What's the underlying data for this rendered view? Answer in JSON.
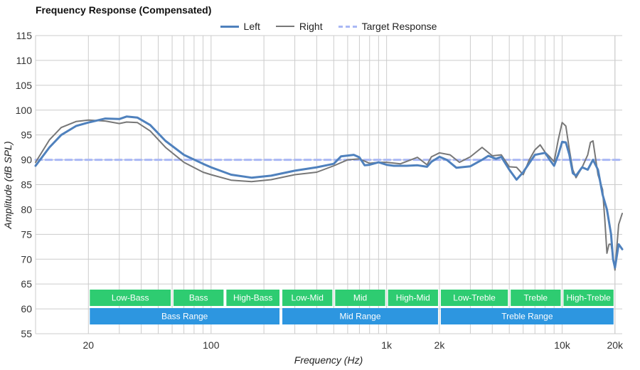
{
  "chart_data": {
    "type": "line",
    "title": "Frequency Response (Compensated)",
    "xlabel": "Frequency (Hz)",
    "ylabel": "Amplitude (dB SPL)",
    "xscale": "log",
    "xlim": [
      10,
      22000
    ],
    "ylim": [
      55,
      115
    ],
    "y_ticks": [
      55,
      60,
      65,
      70,
      75,
      80,
      85,
      90,
      95,
      100,
      105,
      110,
      115
    ],
    "x_ticks": [
      {
        "value": 20,
        "label": "20"
      },
      {
        "value": 100,
        "label": "100"
      },
      {
        "value": 1000,
        "label": "1k"
      },
      {
        "value": 2000,
        "label": "2k"
      },
      {
        "value": 10000,
        "label": "10k"
      },
      {
        "value": 20000,
        "label": "20k"
      }
    ],
    "legend": [
      {
        "name": "Left",
        "color": "#4f81bd",
        "style": "solid"
      },
      {
        "name": "Right",
        "color": "#777777",
        "style": "solid"
      },
      {
        "name": "Target Response",
        "color": "#a9b8f5",
        "style": "dashed"
      }
    ],
    "series": [
      {
        "name": "Left",
        "color": "#4f81bd",
        "points": [
          [
            10,
            88.8
          ],
          [
            12,
            92.5
          ],
          [
            14,
            95
          ],
          [
            17,
            96.8
          ],
          [
            20,
            97.5
          ],
          [
            25,
            98.3
          ],
          [
            30,
            98.2
          ],
          [
            33,
            98.7
          ],
          [
            38,
            98.5
          ],
          [
            45,
            97
          ],
          [
            55,
            93.8
          ],
          [
            70,
            91
          ],
          [
            90,
            89.2
          ],
          [
            100,
            88.5
          ],
          [
            130,
            87
          ],
          [
            170,
            86.4
          ],
          [
            220,
            86.8
          ],
          [
            300,
            87.8
          ],
          [
            400,
            88.5
          ],
          [
            500,
            89.2
          ],
          [
            550,
            90.7
          ],
          [
            650,
            91
          ],
          [
            700,
            90.5
          ],
          [
            750,
            88.9
          ],
          [
            800,
            89
          ],
          [
            900,
            89.5
          ],
          [
            1000,
            89
          ],
          [
            1100,
            88.8
          ],
          [
            1300,
            88.8
          ],
          [
            1500,
            88.9
          ],
          [
            1700,
            88.6
          ],
          [
            1800,
            89.6
          ],
          [
            2000,
            90.6
          ],
          [
            2200,
            90
          ],
          [
            2500,
            88.4
          ],
          [
            3000,
            88.7
          ],
          [
            3500,
            90
          ],
          [
            3800,
            90.8
          ],
          [
            4200,
            90.2
          ],
          [
            4500,
            90.6
          ],
          [
            5000,
            88
          ],
          [
            5500,
            86
          ],
          [
            6000,
            87.5
          ],
          [
            7000,
            91
          ],
          [
            7500,
            91.2
          ],
          [
            8000,
            91.4
          ],
          [
            8500,
            90
          ],
          [
            9000,
            88.8
          ],
          [
            9500,
            91
          ],
          [
            10000,
            93.6
          ],
          [
            10500,
            93.5
          ],
          [
            11000,
            91
          ],
          [
            11500,
            87.3
          ],
          [
            12000,
            86.8
          ],
          [
            13000,
            88.5
          ],
          [
            14000,
            88
          ],
          [
            15000,
            90
          ],
          [
            16000,
            88
          ],
          [
            17000,
            83
          ],
          [
            18000,
            80
          ],
          [
            19000,
            75
          ],
          [
            19500,
            70
          ],
          [
            20000,
            68.3
          ],
          [
            21000,
            73
          ],
          [
            22000,
            72
          ]
        ]
      },
      {
        "name": "Right",
        "color": "#777777",
        "points": [
          [
            10,
            89.5
          ],
          [
            12,
            94
          ],
          [
            14,
            96.5
          ],
          [
            17,
            97.7
          ],
          [
            20,
            98
          ],
          [
            25,
            97.8
          ],
          [
            30,
            97.3
          ],
          [
            33,
            97.6
          ],
          [
            38,
            97.5
          ],
          [
            45,
            95.8
          ],
          [
            55,
            92.5
          ],
          [
            70,
            89.5
          ],
          [
            90,
            87.5
          ],
          [
            100,
            87
          ],
          [
            130,
            85.9
          ],
          [
            170,
            85.6
          ],
          [
            220,
            86
          ],
          [
            300,
            87
          ],
          [
            400,
            87.5
          ],
          [
            500,
            88.8
          ],
          [
            600,
            90
          ],
          [
            700,
            90.2
          ],
          [
            800,
            89.3
          ],
          [
            900,
            89.5
          ],
          [
            1000,
            89.5
          ],
          [
            1200,
            89.2
          ],
          [
            1500,
            90.5
          ],
          [
            1700,
            89
          ],
          [
            1800,
            90.6
          ],
          [
            2000,
            91.4
          ],
          [
            2300,
            91
          ],
          [
            2600,
            89.5
          ],
          [
            3000,
            90.6
          ],
          [
            3500,
            92.5
          ],
          [
            4000,
            90.8
          ],
          [
            4500,
            91
          ],
          [
            5000,
            88.6
          ],
          [
            5500,
            88.5
          ],
          [
            6000,
            87
          ],
          [
            6500,
            90
          ],
          [
            7000,
            92
          ],
          [
            7500,
            93
          ],
          [
            8000,
            91.5
          ],
          [
            8500,
            90.6
          ],
          [
            9000,
            89.6
          ],
          [
            9500,
            94
          ],
          [
            10000,
            97.5
          ],
          [
            10500,
            96.8
          ],
          [
            11000,
            92
          ],
          [
            11500,
            88
          ],
          [
            12000,
            86.4
          ],
          [
            13000,
            88.5
          ],
          [
            14000,
            91
          ],
          [
            14500,
            93.5
          ],
          [
            15000,
            93.8
          ],
          [
            16000,
            87
          ],
          [
            17000,
            84
          ],
          [
            17500,
            78
          ],
          [
            18000,
            71.2
          ],
          [
            18500,
            73
          ],
          [
            19000,
            73
          ],
          [
            20000,
            67.8
          ],
          [
            21000,
            77
          ],
          [
            22000,
            79.2
          ]
        ]
      },
      {
        "name": "Target Response",
        "color": "#a9b8f5",
        "style": "dashed",
        "points": [
          [
            10,
            90
          ],
          [
            22000,
            90
          ]
        ]
      }
    ],
    "band_rows": [
      {
        "row": "sub",
        "color": "#2ecc71",
        "bands": [
          {
            "label": "Low-Bass",
            "from": 20,
            "to": 60
          },
          {
            "label": "Bass",
            "from": 60,
            "to": 120
          },
          {
            "label": "High-Bass",
            "from": 120,
            "to": 250
          },
          {
            "label": "Low-Mid",
            "from": 250,
            "to": 500
          },
          {
            "label": "Mid",
            "from": 500,
            "to": 1000
          },
          {
            "label": "High-Mid",
            "from": 1000,
            "to": 2000
          },
          {
            "label": "Low-Treble",
            "from": 2000,
            "to": 5000
          },
          {
            "label": "Treble",
            "from": 5000,
            "to": 10000
          },
          {
            "label": "High-Treble",
            "from": 10000,
            "to": 20000
          }
        ]
      },
      {
        "row": "main",
        "color": "#2d96e0",
        "bands": [
          {
            "label": "Bass Range",
            "from": 20,
            "to": 250
          },
          {
            "label": "Mid Range",
            "from": 250,
            "to": 2000
          },
          {
            "label": "Treble Range",
            "from": 2000,
            "to": 20000
          }
        ]
      }
    ]
  }
}
